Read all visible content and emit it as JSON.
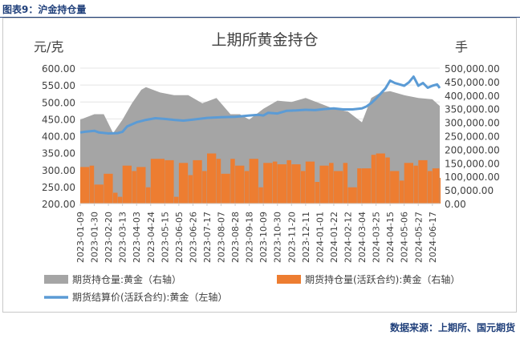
{
  "header": {
    "title": "图表9：沪金持仓量"
  },
  "source": "数据来源：上期所、国元期货",
  "chart_data": {
    "type": "bar",
    "title": "上期所黄金持仓",
    "ylabel_left": "元/克",
    "ylabel_right": "手",
    "ylim_left": [
      200,
      600
    ],
    "ylim_right": [
      0,
      500000
    ],
    "yticks_left": [
      "200.00",
      "250.00",
      "300.00",
      "350.00",
      "400.00",
      "450.00",
      "500.00",
      "550.00",
      "600.00"
    ],
    "yticks_right": [
      "0.00",
      "50,000.00",
      "100,000.00",
      "150,000.00",
      "200,000.00",
      "250,000.00",
      "300,000.00",
      "350,000.00",
      "400,000.00",
      "450,000.00",
      "500,000.00"
    ],
    "x_start": "2023-01-09",
    "x_end": "2024-06-28",
    "xticks": [
      "2023-01-09",
      "2023-01-30",
      "2023-02-20",
      "2023-03-13",
      "2023-04-03",
      "2023-04-24",
      "2023-05-15",
      "2023-06-05",
      "2023-06-26",
      "2023-07-17",
      "2023-08-07",
      "2023-08-28",
      "2023-09-18",
      "2023-10-09",
      "2023-10-30",
      "2023-11-20",
      "2023-12-11",
      "2024-01-01",
      "2024-01-22",
      "2024-02-12",
      "2024-03-04",
      "2024-03-25",
      "2024-04-15",
      "2024-05-06",
      "2024-05-27",
      "2024-06-17"
    ],
    "legend": [
      "期货持仓量:黄金（右轴）",
      "期货持仓量(活跃合约):黄金（右轴）",
      "期货结算价(活跃合约):黄金（左轴）"
    ],
    "legend_position": "bottom",
    "colors": {
      "total": "#a5a5a5",
      "active": "#ed7d31",
      "price": "#5b9bd5"
    },
    "series": [
      {
        "name": "期货持仓量:黄金（右轴）",
        "axis": "right",
        "style": "area",
        "x": [
          "2023-01-09",
          "2023-01-30",
          "2023-02-13",
          "2023-02-27",
          "2023-03-13",
          "2023-03-27",
          "2023-04-10",
          "2023-04-17",
          "2023-05-08",
          "2023-05-29",
          "2023-06-19",
          "2023-07-10",
          "2023-07-31",
          "2023-08-21",
          "2023-09-04",
          "2023-09-18",
          "2023-10-09",
          "2023-10-30",
          "2023-11-20",
          "2023-12-11",
          "2024-01-01",
          "2024-01-22",
          "2024-02-12",
          "2024-03-04",
          "2024-03-18",
          "2024-04-01",
          "2024-04-15",
          "2024-05-06",
          "2024-05-27",
          "2024-06-17",
          "2024-06-28"
        ],
        "values": [
          310000,
          330000,
          330000,
          260000,
          310000,
          370000,
          420000,
          430000,
          410000,
          400000,
          400000,
          370000,
          390000,
          330000,
          330000,
          310000,
          350000,
          380000,
          375000,
          390000,
          370000,
          350000,
          340000,
          300000,
          390000,
          410000,
          415000,
          400000,
          390000,
          385000,
          360000
        ]
      },
      {
        "name": "期货持仓量(活跃合约):黄金（右轴）",
        "axis": "right",
        "style": "bars",
        "x": [
          "2023-01-09",
          "2023-01-23",
          "2023-01-30",
          "2023-02-13",
          "2023-02-27",
          "2023-03-06",
          "2023-03-13",
          "2023-03-27",
          "2023-04-03",
          "2023-04-17",
          "2023-04-24",
          "2023-05-15",
          "2023-05-29",
          "2023-06-05",
          "2023-06-19",
          "2023-06-26",
          "2023-07-10",
          "2023-07-17",
          "2023-07-31",
          "2023-08-07",
          "2023-08-21",
          "2023-08-28",
          "2023-09-11",
          "2023-09-18",
          "2023-10-02",
          "2023-10-09",
          "2023-10-23",
          "2023-10-30",
          "2023-11-13",
          "2023-11-20",
          "2023-12-04",
          "2023-12-11",
          "2023-12-25",
          "2024-01-01",
          "2024-01-15",
          "2024-01-22",
          "2024-02-05",
          "2024-02-12",
          "2024-02-26",
          "2024-03-04",
          "2024-03-18",
          "2024-03-25",
          "2024-04-08",
          "2024-04-15",
          "2024-04-29",
          "2024-05-06",
          "2024-05-20",
          "2024-05-27",
          "2024-06-10",
          "2024-06-17",
          "2024-06-28"
        ],
        "values": [
          135000,
          140000,
          70000,
          110000,
          40000,
          25000,
          140000,
          120000,
          135000,
          60000,
          165000,
          160000,
          25000,
          150000,
          105000,
          160000,
          120000,
          185000,
          165000,
          110000,
          165000,
          140000,
          120000,
          165000,
          60000,
          150000,
          155000,
          145000,
          160000,
          145000,
          120000,
          155000,
          80000,
          140000,
          150000,
          120000,
          150000,
          60000,
          130000,
          130000,
          180000,
          185000,
          170000,
          120000,
          85000,
          150000,
          140000,
          160000,
          120000,
          130000,
          95000
        ]
      },
      {
        "name": "期货结算价(活跃合约):黄金（左轴）",
        "axis": "left",
        "style": "line",
        "x": [
          "2023-01-09",
          "2023-01-16",
          "2023-01-30",
          "2023-02-06",
          "2023-02-20",
          "2023-03-06",
          "2023-03-13",
          "2023-03-20",
          "2023-04-03",
          "2023-04-17",
          "2023-05-01",
          "2023-05-15",
          "2023-05-29",
          "2023-06-12",
          "2023-06-26",
          "2023-07-17",
          "2023-08-07",
          "2023-08-28",
          "2023-09-18",
          "2023-10-02",
          "2023-10-09",
          "2023-10-16",
          "2023-10-30",
          "2023-11-13",
          "2023-11-27",
          "2023-12-11",
          "2023-12-25",
          "2024-01-08",
          "2024-01-22",
          "2024-02-05",
          "2024-02-19",
          "2024-03-04",
          "2024-03-11",
          "2024-03-18",
          "2024-03-25",
          "2024-04-01",
          "2024-04-08",
          "2024-04-15",
          "2024-04-22",
          "2024-05-06",
          "2024-05-13",
          "2024-05-20",
          "2024-05-27",
          "2024-06-03",
          "2024-06-10",
          "2024-06-17",
          "2024-06-24",
          "2024-06-28"
        ],
        "values": [
          410,
          412,
          415,
          410,
          407,
          408,
          412,
          428,
          440,
          447,
          452,
          450,
          447,
          445,
          448,
          453,
          455,
          456,
          460,
          462,
          460,
          468,
          466,
          474,
          475,
          477,
          476,
          479,
          481,
          478,
          478,
          481,
          487,
          497,
          510,
          525,
          540,
          563,
          556,
          548,
          558,
          575,
          548,
          556,
          542,
          548,
          552,
          541
        ]
      }
    ]
  }
}
